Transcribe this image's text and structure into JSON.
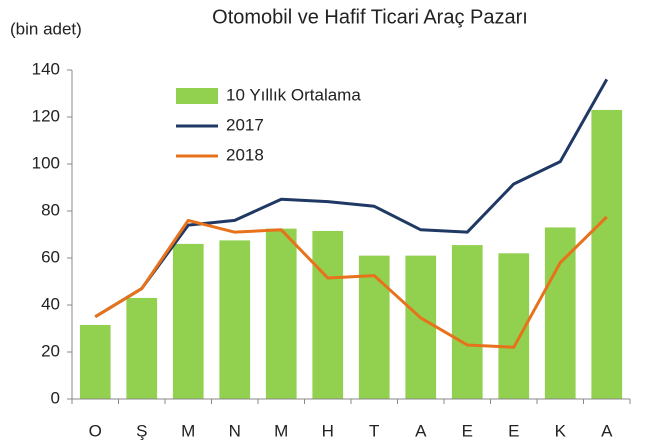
{
  "chart_data": {
    "type": "bar",
    "title": "Otomobil ve Hafif Ticari Araç Pazarı",
    "y_label": "(bin adet)",
    "categories": [
      "O",
      "Ş",
      "M",
      "N",
      "M",
      "H",
      "T",
      "A",
      "E",
      "E",
      "K",
      "A"
    ],
    "series": [
      {
        "name": "10 Yıllık Ortalama",
        "type": "bar",
        "color": "#92d050",
        "values": [
          31.5,
          43,
          66,
          67.5,
          72.5,
          71.5,
          61,
          61,
          65.5,
          62,
          73,
          123
        ]
      },
      {
        "name": "2017",
        "type": "line",
        "color": "#1f3864",
        "values": [
          35,
          47,
          74,
          76,
          85,
          84,
          82,
          72,
          71,
          91.5,
          101,
          136
        ]
      },
      {
        "name": "2018",
        "type": "line",
        "color": "#e8721c",
        "values": [
          35,
          47,
          76,
          71,
          72,
          51.5,
          52.5,
          34.5,
          23,
          22,
          58,
          77.5
        ]
      }
    ],
    "ylim": [
      0,
      140
    ],
    "yticks": [
      0,
      20,
      40,
      60,
      80,
      100,
      120,
      140
    ],
    "grid": false,
    "legend": "top-left"
  }
}
